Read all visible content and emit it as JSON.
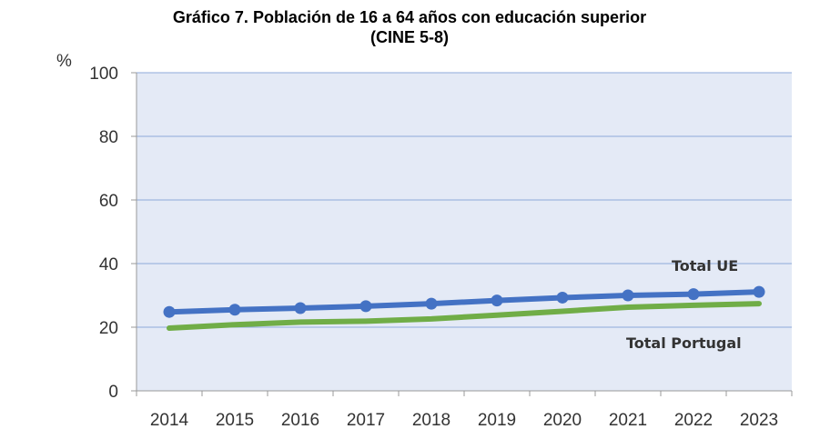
{
  "chart_data": {
    "type": "line",
    "title": "Gráfico 7. Población de 16 a 64 años con educación superior",
    "subtitle": "(CINE 5-8)",
    "ylabel": "%",
    "xlabel": "",
    "ylim": [
      0,
      100
    ],
    "yticks": [
      "0",
      "20",
      "40",
      "60",
      "80",
      "100"
    ],
    "categories": [
      "2014",
      "2015",
      "2016",
      "2017",
      "2018",
      "2019",
      "2020",
      "2021",
      "2022",
      "2023"
    ],
    "grid": true,
    "series": [
      {
        "name": "Total UE",
        "color": "#4472C4",
        "markers": true,
        "values": [
          24.8,
          25.5,
          26.0,
          26.6,
          27.4,
          28.4,
          29.3,
          30.0,
          30.4,
          31.1
        ]
      },
      {
        "name": "Total Portugal",
        "color": "#70AD47",
        "markers": false,
        "values": [
          19.7,
          20.8,
          21.6,
          21.9,
          22.6,
          23.8,
          25.0,
          26.3,
          26.9,
          27.4
        ]
      }
    ]
  }
}
